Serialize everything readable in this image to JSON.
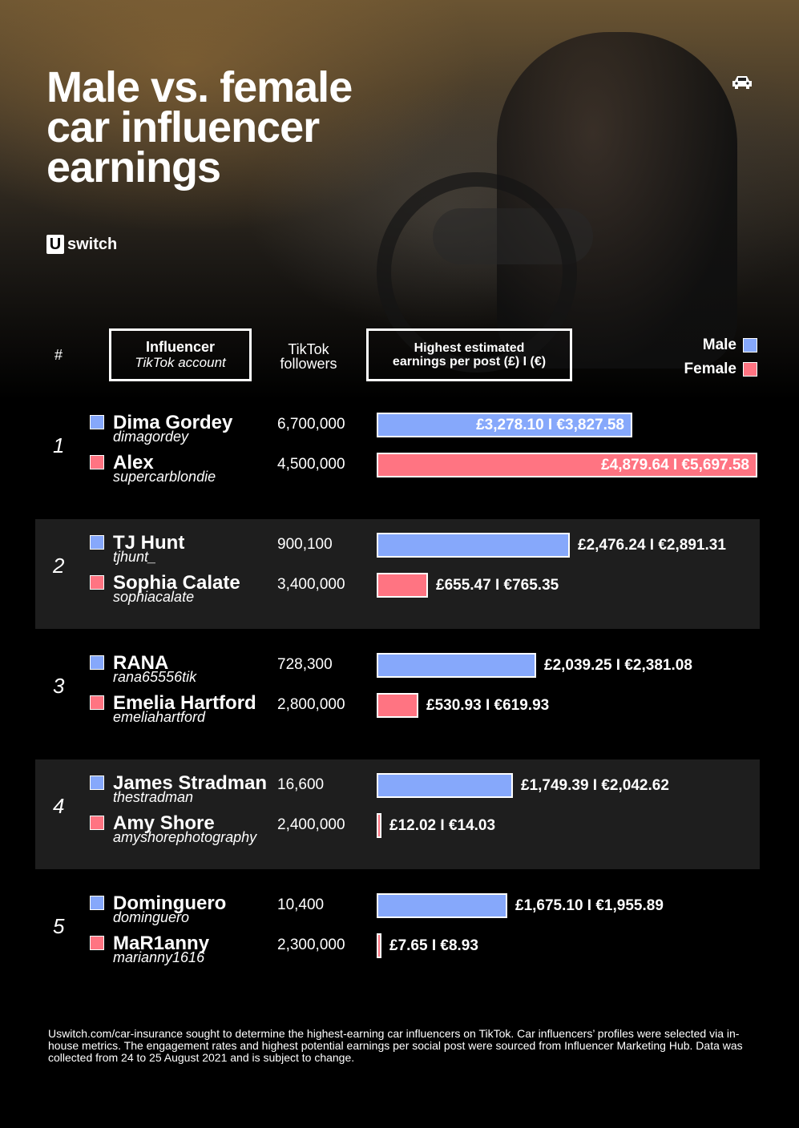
{
  "title": {
    "line1": "Male vs. female",
    "line2": "car influencer",
    "line3": "earnings"
  },
  "brand": {
    "mark": "U",
    "name": "switch"
  },
  "icons": {
    "corner": "car-icon"
  },
  "headers": {
    "rank": "#",
    "influencer": "Influencer",
    "account": "TikTok account",
    "followers_line1": "TikTok",
    "followers_line2": "followers",
    "earnings_line1": "Highest estimated",
    "earnings_line2": "earnings per post (£) I (€)"
  },
  "legend": {
    "male": "Male",
    "female": "Female"
  },
  "colors": {
    "male": "#86a8fb",
    "female": "#ff7482",
    "band": "#1e1e1e"
  },
  "chart_data": {
    "type": "bar",
    "orientation": "horizontal",
    "x_max_gbp": 4879.64,
    "groups": [
      {
        "rank": "1",
        "rows": [
          {
            "gender": "male",
            "name": "Dima Gordey",
            "handle": "dimagordey",
            "followers": "6,700,000",
            "gbp": 3278.1,
            "label": "£3,278.10 I €3,827.58"
          },
          {
            "gender": "female",
            "name": "Alex",
            "handle": "supercarblondie",
            "followers": "4,500,000",
            "gbp": 4879.64,
            "label": "£4,879.64 I €5,697.58"
          }
        ]
      },
      {
        "rank": "2",
        "rows": [
          {
            "gender": "male",
            "name": "TJ Hunt",
            "handle": "tjhunt_",
            "followers": "900,100",
            "gbp": 2476.24,
            "label": "£2,476.24 I €2,891.31"
          },
          {
            "gender": "female",
            "name": "Sophia Calate",
            "handle": "sophiacalate",
            "followers": "3,400,000",
            "gbp": 655.47,
            "label": "£655.47 I €765.35"
          }
        ]
      },
      {
        "rank": "3",
        "rows": [
          {
            "gender": "male",
            "name": "RANA",
            "handle": "rana65556tik",
            "followers": "728,300",
            "gbp": 2039.25,
            "label": "£2,039.25 I €2,381.08"
          },
          {
            "gender": "female",
            "name": "Emelia Hartford",
            "handle": "emeliahartford",
            "followers": "2,800,000",
            "gbp": 530.93,
            "label": "£530.93 I €619.93"
          }
        ]
      },
      {
        "rank": "4",
        "rows": [
          {
            "gender": "male",
            "name": "James Stradman",
            "handle": "thestradman",
            "followers": "16,600",
            "gbp": 1749.39,
            "label": "£1,749.39 I €2,042.62"
          },
          {
            "gender": "female",
            "name": "Amy Shore",
            "handle": "amyshorephotography",
            "followers": "2,400,000",
            "gbp": 12.02,
            "label": "£12.02 I €14.03"
          }
        ]
      },
      {
        "rank": "5",
        "rows": [
          {
            "gender": "male",
            "name": "Dominguero",
            "handle": "dominguero",
            "followers": "10,400",
            "gbp": 1675.1,
            "label": "£1,675.10 I €1,955.89"
          },
          {
            "gender": "female",
            "name": "MaR1anny",
            "handle": "marianny1616",
            "followers": "2,300,000",
            "gbp": 7.65,
            "label": "£7.65 I €8.93"
          }
        ]
      }
    ]
  },
  "footnote": "Uswitch.com/car-insurance sought to determine the highest-earning car influencers on TikTok. Car influencers’ profiles were selected via in-house metrics. The engagement rates and highest potential earnings per social post were sourced from Influencer Marketing Hub. Data was collected from 24 to 25 August 2021 and is subject to change."
}
